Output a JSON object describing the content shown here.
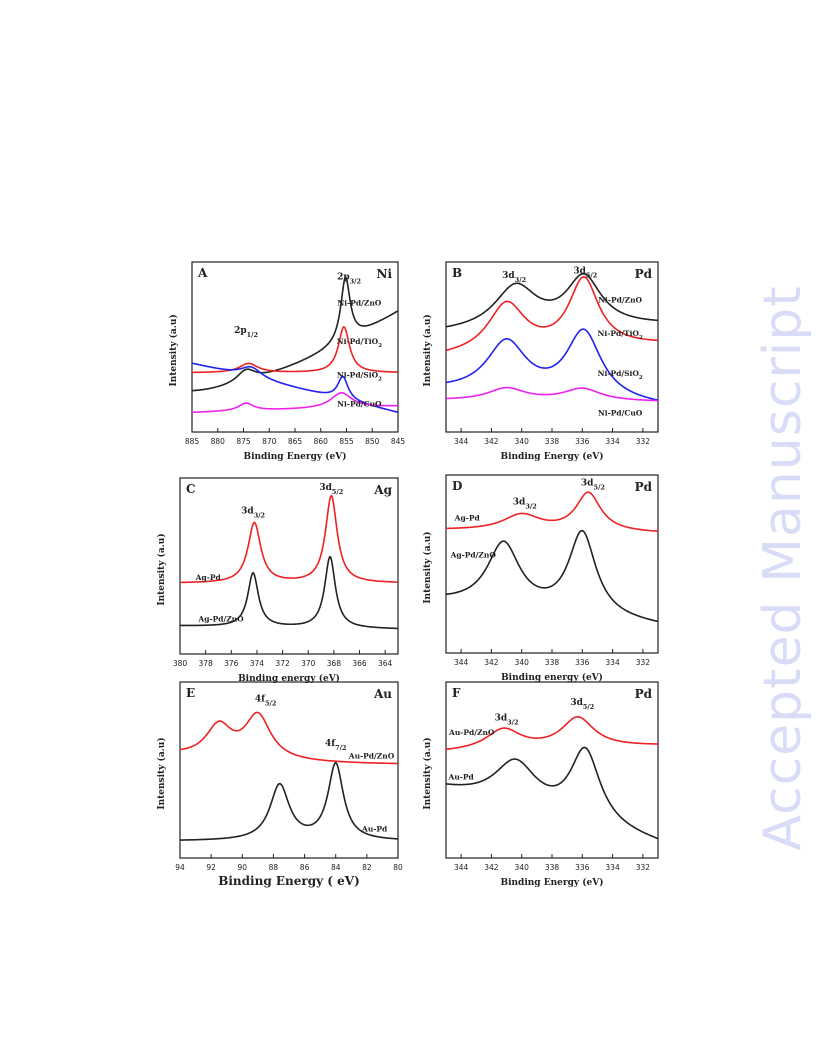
{
  "watermark": "Accepted Manuscript",
  "colors": {
    "black": "#222222",
    "red": "#ee2222",
    "blue": "#2222ee",
    "magenta": "#ee22ee"
  },
  "chart_data": [
    {
      "type": "line",
      "letter": "A",
      "element": "Ni",
      "xlabel": "Binding Energy (eV)",
      "ylabel": "Intensity   (a.u)",
      "xlim": [
        885,
        845
      ],
      "xticks": [
        885,
        880,
        875,
        870,
        865,
        860,
        855,
        850,
        845
      ],
      "ylim": [
        0,
        1
      ],
      "annotations": [
        {
          "text": "2p",
          "sub": "3/2",
          "x": 854.5,
          "y": 0.93
        },
        {
          "text": "2p",
          "sub": "1/2",
          "x": 874.5,
          "y": 0.58
        }
      ],
      "series": [
        {
          "name": "Ni-Pd/ZnO",
          "color": "#222222",
          "label_x": 852.5,
          "label_y": 0.76,
          "base0": 0.2,
          "base1": 0.72,
          "shape": "convex",
          "peaks": [
            {
              "c": 855.2,
              "w": 1.1,
              "h": 0.42
            },
            {
              "c": 874.5,
              "w": 2.2,
              "h": 0.08
            }
          ]
        },
        {
          "name": "Ni-Pd/TiO",
          "sub": "2",
          "color": "#ee2222",
          "label_x": 852.5,
          "label_y": 0.51,
          "base0": 0.32,
          "base1": 0.32,
          "shape": "flat",
          "peaks": [
            {
              "c": 855.5,
              "w": 1.3,
              "h": 0.3
            },
            {
              "c": 874.0,
              "w": 2.2,
              "h": 0.06
            }
          ]
        },
        {
          "name": "Ni-Pd/SiO",
          "sub": "2",
          "color": "#2222ee",
          "label_x": 852.5,
          "label_y": 0.29,
          "base0": 0.38,
          "base1": 0.06,
          "shape": "linear",
          "peaks": [
            {
              "c": 855.7,
              "w": 1.2,
              "h": 0.15
            },
            {
              "c": 873.5,
              "w": 2.5,
              "h": 0.07
            }
          ]
        },
        {
          "name": "Ni-Pd/CuO",
          "color": "#ee22ee",
          "label_x": 852.5,
          "label_y": 0.1,
          "base0": 0.06,
          "base1": 0.1,
          "shape": "linear",
          "peaks": [
            {
              "c": 856.0,
              "w": 2.5,
              "h": 0.1
            },
            {
              "c": 874.5,
              "w": 1.8,
              "h": 0.05
            }
          ]
        }
      ]
    },
    {
      "type": "line",
      "letter": "B",
      "element": "Pd",
      "xlabel": "Binding Energy (eV)",
      "ylabel": "Intensity   (a.u)",
      "xlim": [
        345,
        331
      ],
      "xticks": [
        344,
        342,
        340,
        338,
        336,
        334,
        332
      ],
      "ylim": [
        0,
        1
      ],
      "annotations": [
        {
          "text": "3d",
          "sub": "3/2",
          "x": 340.5,
          "y": 0.94
        },
        {
          "text": "3d",
          "sub": "5/2",
          "x": 335.8,
          "y": 0.97
        }
      ],
      "series": [
        {
          "name": "Ni-Pd/ZnO",
          "color": "#222222",
          "label_x": 333.5,
          "label_y": 0.78,
          "base0": 0.58,
          "base1": 0.63,
          "shape": "linear",
          "peaks": [
            {
              "c": 340.4,
              "w": 1.7,
              "h": 0.28
            },
            {
              "c": 335.9,
              "w": 1.4,
              "h": 0.32
            }
          ]
        },
        {
          "name": "Ni-Pd/TiO",
          "sub": "2",
          "color": "#ee2222",
          "label_x": 333.5,
          "label_y": 0.56,
          "base0": 0.42,
          "base1": 0.5,
          "shape": "linear",
          "peaks": [
            {
              "c": 341.0,
              "w": 1.5,
              "h": 0.32
            },
            {
              "c": 335.9,
              "w": 1.2,
              "h": 0.45
            }
          ]
        },
        {
          "name": "Ni-Pd/SiO",
          "sub": "2",
          "color": "#2222ee",
          "label_x": 333.5,
          "label_y": 0.3,
          "base0": 0.2,
          "base1": 0.1,
          "shape": "linear",
          "peaks": [
            {
              "c": 341.0,
              "w": 1.6,
              "h": 0.34
            },
            {
              "c": 335.9,
              "w": 1.4,
              "h": 0.44
            }
          ]
        },
        {
          "name": "Ni-Pd/CuO",
          "color": "#ee22ee",
          "label_x": 333.5,
          "label_y": 0.04,
          "base0": 0.14,
          "base1": 0.13,
          "shape": "linear",
          "peaks": [
            {
              "c": 341.0,
              "w": 1.5,
              "h": 0.08
            },
            {
              "c": 336.0,
              "w": 1.5,
              "h": 0.08
            }
          ]
        }
      ]
    },
    {
      "type": "line",
      "letter": "C",
      "element": "Ag",
      "xlabel": "Binding energy (eV)",
      "ylabel": "Intensity   (a.u)",
      "xlim": [
        380,
        363
      ],
      "xticks": [
        380,
        378,
        376,
        374,
        372,
        370,
        368,
        366,
        364
      ],
      "ylim": [
        0,
        1
      ],
      "annotations": [
        {
          "text": "3d",
          "sub": "3/2",
          "x": 374.3,
          "y": 0.82
        },
        {
          "text": "3d",
          "sub": "5/2",
          "x": 368.2,
          "y": 0.97
        }
      ],
      "series": [
        {
          "name": "Ag-Pd",
          "color": "#ee2222",
          "label_x": 377.8,
          "label_y": 0.4,
          "base0": 0.38,
          "base1": 0.38,
          "shape": "flat",
          "peaks": [
            {
              "c": 374.2,
              "w": 0.6,
              "h": 0.38
            },
            {
              "c": 368.2,
              "w": 0.55,
              "h": 0.55
            }
          ]
        },
        {
          "name": "Ag-Pd/ZnO",
          "color": "#222222",
          "label_x": 376.8,
          "label_y": 0.14,
          "base0": 0.11,
          "base1": 0.09,
          "shape": "linear",
          "peaks": [
            {
              "c": 374.3,
              "w": 0.5,
              "h": 0.34
            },
            {
              "c": 368.3,
              "w": 0.5,
              "h": 0.45
            }
          ]
        }
      ]
    },
    {
      "type": "line",
      "letter": "D",
      "element": "Pd",
      "xlabel": "Binding energy (eV)",
      "ylabel": "Intensity   (a.u)",
      "xlim": [
        345,
        331
      ],
      "xticks": [
        344,
        342,
        340,
        338,
        336,
        334,
        332
      ],
      "ylim": [
        0,
        1
      ],
      "annotations": [
        {
          "text": "3d",
          "sub": "3/2",
          "x": 339.8,
          "y": 0.86
        },
        {
          "text": "3d",
          "sub": "5/2",
          "x": 335.3,
          "y": 0.98
        }
      ],
      "series": [
        {
          "name": "Ag-Pd",
          "color": "#ee2222",
          "label_x": 343.6,
          "label_y": 0.76,
          "base0": 0.7,
          "base1": 0.68,
          "shape": "linear",
          "peaks": [
            {
              "c": 340.0,
              "w": 1.5,
              "h": 0.1
            },
            {
              "c": 335.6,
              "w": 1.0,
              "h": 0.24
            }
          ]
        },
        {
          "name": "Ag-Pd/ZnO",
          "color": "#222222",
          "label_x": 343.2,
          "label_y": 0.53,
          "base0": 0.25,
          "base1": 0.1,
          "shape": "linear",
          "peaks": [
            {
              "c": 341.2,
              "w": 1.3,
              "h": 0.4
            },
            {
              "c": 336.0,
              "w": 1.1,
              "h": 0.52
            }
          ]
        }
      ]
    },
    {
      "type": "line",
      "letter": "E",
      "element": "Au",
      "xlabel": "Binding Energy ( eV)",
      "ylabel": "Intensity   (a.u)",
      "xlim": [
        94,
        80
      ],
      "xticks": [
        94,
        92,
        90,
        88,
        86,
        84,
        82,
        80
      ],
      "ylim": [
        0,
        1
      ],
      "annotations": [
        {
          "text": "4f",
          "sub": "5/2",
          "x": 88.5,
          "y": 0.92
        },
        {
          "text": "4f",
          "sub": "7/2",
          "x": 84.0,
          "y": 0.64
        }
      ],
      "series": [
        {
          "name": "Au-Pd/ZnO",
          "color": "#ee2222",
          "label_x": 81.7,
          "label_y": 0.56,
          "base0": 0.58,
          "base1": 0.52,
          "shape": "decay",
          "peaks": [
            {
              "c": 91.5,
              "w": 1.0,
              "h": 0.2
            },
            {
              "c": 89.0,
              "w": 1.0,
              "h": 0.28
            }
          ]
        },
        {
          "name": "Au-Pd",
          "color": "#222222",
          "label_x": 81.5,
          "label_y": 0.1,
          "base0": 0.04,
          "base1": 0.04,
          "shape": "flat",
          "peaks": [
            {
              "c": 87.6,
              "w": 0.75,
              "h": 0.35
            },
            {
              "c": 84.0,
              "w": 0.6,
              "h": 0.48
            }
          ]
        }
      ]
    },
    {
      "type": "line",
      "letter": "F",
      "element": "Pd",
      "xlabel": "Binding Energy (eV)",
      "ylabel": "Intensity   (a.u)",
      "xlim": [
        345,
        331
      ],
      "xticks": [
        344,
        342,
        340,
        338,
        336,
        334,
        332
      ],
      "ylim": [
        0,
        1
      ],
      "annotations": [
        {
          "text": "3d",
          "sub": "3/2",
          "x": 341.0,
          "y": 0.8
        },
        {
          "text": "3d",
          "sub": "5/2",
          "x": 336.0,
          "y": 0.9
        }
      ],
      "series": [
        {
          "name": "Au-Pd/ZnO",
          "color": "#ee2222",
          "label_x": 343.3,
          "label_y": 0.71,
          "base0": 0.6,
          "base1": 0.64,
          "shape": "linear",
          "peaks": [
            {
              "c": 341.2,
              "w": 1.4,
              "h": 0.13
            },
            {
              "c": 336.3,
              "w": 1.3,
              "h": 0.19
            }
          ]
        },
        {
          "name": "Au-Pd",
          "color": "#222222",
          "label_x": 344.0,
          "label_y": 0.43,
          "base0": 0.36,
          "base1": 0.02,
          "shape": "linear",
          "peaks": [
            {
              "c": 340.4,
              "w": 1.7,
              "h": 0.28
            },
            {
              "c": 335.8,
              "w": 1.2,
              "h": 0.46
            }
          ]
        }
      ]
    }
  ]
}
